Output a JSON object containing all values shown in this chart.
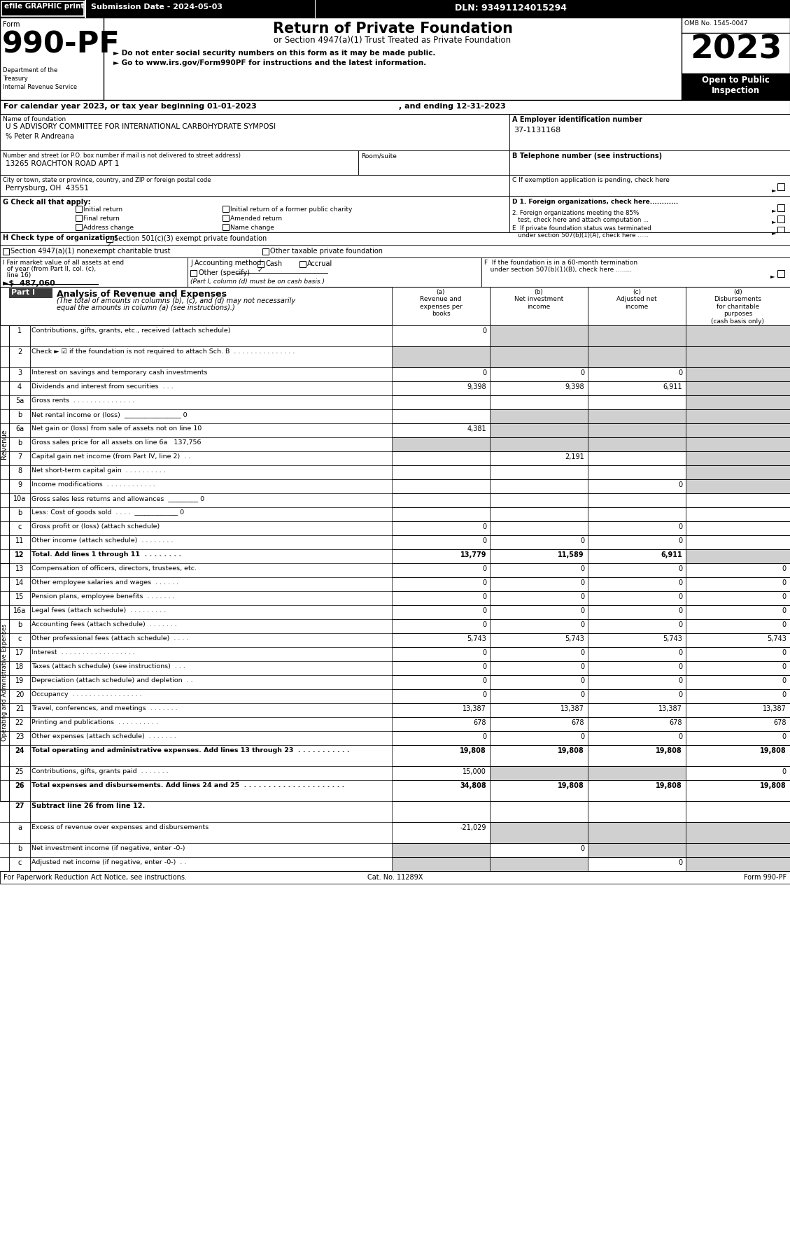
{
  "header_bar": {
    "efile_text": "efile GRAPHIC print",
    "submission_text": "Submission Date - 2024-05-03",
    "dln_text": "DLN: 93491124015294"
  },
  "form_number": "990-PF",
  "form_label": "Form",
  "title": "Return of Private Foundation",
  "subtitle": "or Section 4947(a)(1) Trust Treated as Private Foundation",
  "bullet1": "► Do not enter social security numbers on this form as it may be made public.",
  "bullet2": "► Go to www.irs.gov/Form990PF for instructions and the latest information.",
  "omb": "OMB No. 1545-0047",
  "year": "2023",
  "dept1": "Department of the",
  "dept2": "Treasury",
  "dept3": "Internal Revenue Service",
  "cal_year_line": "For calendar year 2023, or tax year beginning 01-01-2023",
  "cal_year_end": ", and ending 12-31-2023",
  "foundation_name_label": "Name of foundation",
  "foundation_name": "U S ADVISORY COMMITTEE FOR INTERNATIONAL CARBOHYDRATE SYMPOSI",
  "pct": "% Peter R Andreana",
  "ein_label": "A Employer identification number",
  "ein": "37-1131168",
  "address_label": "Number and street (or P.O. box number if mail is not delivered to street address)",
  "room_label": "Room/suite",
  "address": "13265 ROACHTON ROAD APT 1",
  "tel_label": "B Telephone number (see instructions)",
  "city_label": "City or town, state or province, country, and ZIP or foreign postal code",
  "city": "Perrysburg, OH  43551",
  "c_label": "C If exemption application is pending, check here",
  "g_label": "G Check all that apply:",
  "d1_label": "D 1. Foreign organizations, check here............",
  "d2_label": "2. Foreign organizations meeting the 85%\n   test, check here and attach computation ...",
  "e_label": "E  If private foundation status was terminated\n   under section 507(b)(1)(A), check here ......",
  "h_label": "H Check type of organization:",
  "h_option1": "Section 501(c)(3) exempt private foundation",
  "h_option2": "Section 4947(a)(1) nonexempt charitable trust",
  "h_option3": "Other taxable private foundation",
  "i_label1": "I Fair market value of all assets at end",
  "i_label2": "  of year (from Part II, col. (c),",
  "i_label3": "  line 16)",
  "i_value": "►$  487,060",
  "j_label": "J Accounting method:",
  "j_cash": "Cash",
  "j_accrual": "Accrual",
  "j_other": "Other (specify)",
  "j_note": "(Part I, column (d) must be on cash basis.)",
  "f_label1": "F  If the foundation is in a 60-month termination",
  "f_label2": "   under section 507(b)(1)(B), check here ........",
  "part1_label": "Part I",
  "part1_title": "Analysis of Revenue and Expenses",
  "part1_italic": "(The total of amounts in columns (b), (c), and (d) may not necessarily equal the amounts in column (a) (see instructions).)",
  "col_a": "(a)\nRevenue and\nexpenses per\nbooks",
  "col_b": "(b)\nNet investment\nincome",
  "col_c": "(c)\nAdjusted net\nincome",
  "col_d": "(d)\nDisbursements\nfor charitable\npurposes\n(cash basis only)",
  "rows": [
    {
      "num": "1",
      "label": "Contributions, gifts, grants, etc., received (attach schedule)",
      "a": "0",
      "b": "",
      "c": "",
      "d": "",
      "shaded_b": true,
      "shaded_c": true,
      "shaded_d": true,
      "two_line": true
    },
    {
      "num": "2",
      "label": "Check ► ☑ if the foundation is not required to attach Sch. B  . . . . . . . . . . . . . . .",
      "a": "",
      "b": "",
      "c": "",
      "d": "",
      "shaded_a": true,
      "shaded_b": true,
      "shaded_c": true,
      "shaded_d": true,
      "two_line": true
    },
    {
      "num": "3",
      "label": "Interest on savings and temporary cash investments",
      "a": "0",
      "b": "0",
      "c": "0",
      "d": "",
      "shaded_d": true
    },
    {
      "num": "4",
      "label": "Dividends and interest from securities  . . .",
      "a": "9,398",
      "b": "9,398",
      "c": "6,911",
      "d": "",
      "shaded_d": true
    },
    {
      "num": "5a",
      "label": "Gross rents  . . . . . . . . . . . . . . .",
      "a": "",
      "b": "",
      "c": "",
      "d": "",
      "shaded_d": true
    },
    {
      "num": "b",
      "label": "Net rental income or (loss)  _________________ 0",
      "a": "",
      "b": "",
      "c": "",
      "d": "",
      "shaded_b": true,
      "shaded_c": true,
      "shaded_d": true
    },
    {
      "num": "6a",
      "label": "Net gain or (loss) from sale of assets not on line 10",
      "a": "4,381",
      "b": "",
      "c": "",
      "d": "",
      "shaded_b": true,
      "shaded_c": true,
      "shaded_d": true
    },
    {
      "num": "b",
      "label": "Gross sales price for all assets on line 6a   137,756",
      "a": "",
      "b": "",
      "c": "",
      "d": "",
      "shaded_a": true,
      "shaded_b": true,
      "shaded_c": true,
      "shaded_d": true
    },
    {
      "num": "7",
      "label": "Capital gain net income (from Part IV, line 2)  . .",
      "a": "",
      "b": "2,191",
      "c": "",
      "d": "",
      "shaded_d": true
    },
    {
      "num": "8",
      "label": "Net short-term capital gain  . . . . . . . . . .",
      "a": "",
      "b": "",
      "c": "",
      "d": "",
      "shaded_d": true
    },
    {
      "num": "9",
      "label": "Income modifications  . . . . . . . . . . . .",
      "a": "",
      "b": "",
      "c": "0",
      "d": "",
      "shaded_d": true
    },
    {
      "num": "10a",
      "label": "Gross sales less returns and allowances  _________ 0",
      "a": "",
      "b": "",
      "c": "",
      "d": ""
    },
    {
      "num": "b",
      "label": "Less: Cost of goods sold  . . . .  _____________ 0",
      "a": "",
      "b": "",
      "c": "",
      "d": ""
    },
    {
      "num": "c",
      "label": "Gross profit or (loss) (attach schedule)",
      "a": "0",
      "b": "",
      "c": "0",
      "d": ""
    },
    {
      "num": "11",
      "label": "Other income (attach schedule)  . . . . . . . .",
      "a": "0",
      "b": "0",
      "c": "0",
      "d": ""
    },
    {
      "num": "12",
      "label": "Total. Add lines 1 through 11  . . . . . . . .",
      "a": "13,779",
      "b": "11,589",
      "c": "6,911",
      "d": "",
      "shaded_d": true,
      "bold": true
    },
    {
      "num": "13",
      "label": "Compensation of officers, directors, trustees, etc.",
      "a": "0",
      "b": "0",
      "c": "0",
      "d": "0"
    },
    {
      "num": "14",
      "label": "Other employee salaries and wages  . . . . . .",
      "a": "0",
      "b": "0",
      "c": "0",
      "d": "0"
    },
    {
      "num": "15",
      "label": "Pension plans, employee benefits  . . . . . . .",
      "a": "0",
      "b": "0",
      "c": "0",
      "d": "0"
    },
    {
      "num": "16a",
      "label": "Legal fees (attach schedule)  . . . . . . . . .",
      "a": "0",
      "b": "0",
      "c": "0",
      "d": "0"
    },
    {
      "num": "b",
      "label": "Accounting fees (attach schedule)  . . . . . . .",
      "a": "0",
      "b": "0",
      "c": "0",
      "d": "0"
    },
    {
      "num": "c",
      "label": "Other professional fees (attach schedule)  . . . .",
      "a": "5,743",
      "b": "5,743",
      "c": "5,743",
      "d": "5,743"
    },
    {
      "num": "17",
      "label": "Interest  . . . . . . . . . . . . . . . . . .",
      "a": "0",
      "b": "0",
      "c": "0",
      "d": "0"
    },
    {
      "num": "18",
      "label": "Taxes (attach schedule) (see instructions)  . . .",
      "a": "0",
      "b": "0",
      "c": "0",
      "d": "0"
    },
    {
      "num": "19",
      "label": "Depreciation (attach schedule) and depletion  . .",
      "a": "0",
      "b": "0",
      "c": "0",
      "d": "0"
    },
    {
      "num": "20",
      "label": "Occupancy  . . . . . . . . . . . . . . . . .",
      "a": "0",
      "b": "0",
      "c": "0",
      "d": "0"
    },
    {
      "num": "21",
      "label": "Travel, conferences, and meetings  . . . . . . .",
      "a": "13,387",
      "b": "13,387",
      "c": "13,387",
      "d": "13,387"
    },
    {
      "num": "22",
      "label": "Printing and publications  . . . . . . . . . .",
      "a": "678",
      "b": "678",
      "c": "678",
      "d": "678"
    },
    {
      "num": "23",
      "label": "Other expenses (attach schedule)  . . . . . . .",
      "a": "0",
      "b": "0",
      "c": "0",
      "d": "0"
    },
    {
      "num": "24",
      "label": "Total operating and administrative expenses. Add lines 13 through 23  . . . . . . . . . . .",
      "a": "19,808",
      "b": "19,808",
      "c": "19,808",
      "d": "19,808",
      "bold": true,
      "two_line": true
    },
    {
      "num": "25",
      "label": "Contributions, gifts, grants paid  . . . . . . .",
      "a": "15,000",
      "b": "",
      "c": "",
      "d": "0",
      "shaded_b": true,
      "shaded_c": true
    },
    {
      "num": "26",
      "label": "Total expenses and disbursements. Add lines 24 and 25  . . . . . . . . . . . . . . . . . . . . .",
      "a": "34,808",
      "b": "19,808",
      "c": "19,808",
      "d": "19,808",
      "bold": true,
      "two_line": true
    },
    {
      "num": "27",
      "label": "Subtract line 26 from line 12.",
      "is_header": true
    },
    {
      "num": "a",
      "label": "Excess of revenue over expenses and disbursements",
      "a": "-21,029",
      "b": "",
      "c": "",
      "d": "",
      "shaded_b": true,
      "shaded_c": true,
      "shaded_d": true,
      "two_line": true
    },
    {
      "num": "b",
      "label": "Net investment income (if negative, enter -0-)",
      "a": "",
      "b": "0",
      "c": "",
      "d": "",
      "shaded_a": true,
      "shaded_c": true,
      "shaded_d": true
    },
    {
      "num": "c",
      "label": "Adjusted net income (if negative, enter -0-)  . .",
      "a": "",
      "b": "",
      "c": "0",
      "d": "",
      "shaded_a": true,
      "shaded_b": true,
      "shaded_d": true
    }
  ],
  "footer_left": "For Paperwork Reduction Act Notice, see instructions.",
  "footer_center": "Cat. No. 11289X",
  "footer_right": "Form 990-PF",
  "side_label_revenue": "Revenue",
  "side_label_expenses": "Operating and Administrative Expenses",
  "shaded_cell": "#d0d0d0"
}
